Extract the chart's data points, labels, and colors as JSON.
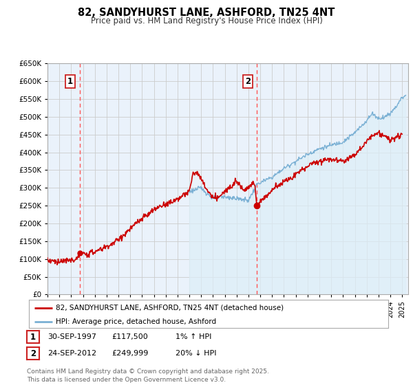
{
  "title": "82, SANDYHURST LANE, ASHFORD, TN25 4NT",
  "subtitle": "Price paid vs. HM Land Registry's House Price Index (HPI)",
  "ylim": [
    0,
    650000
  ],
  "yticks": [
    0,
    50000,
    100000,
    150000,
    200000,
    250000,
    300000,
    350000,
    400000,
    450000,
    500000,
    550000,
    600000,
    650000
  ],
  "xlim_start": 1995.0,
  "xlim_end": 2025.5,
  "hpi_color": "#7ab0d4",
  "hpi_fill_color": "#ddeef8",
  "price_color": "#cc0000",
  "vline_color": "#ff5555",
  "background_color": "#ffffff",
  "grid_color": "#cccccc",
  "marker1_x": 1997.73,
  "marker1_y": 117500,
  "marker2_x": 2012.73,
  "marker2_y": 249999,
  "legend_label1": "82, SANDYHURST LANE, ASHFORD, TN25 4NT (detached house)",
  "legend_label2": "HPI: Average price, detached house, Ashford",
  "footnote_label1_date": "30-SEP-1997",
  "footnote_label1_price": "£117,500",
  "footnote_label1_hpi": "1% ↑ HPI",
  "footnote_label2_date": "24-SEP-2012",
  "footnote_label2_price": "£249,999",
  "footnote_label2_hpi": "20% ↓ HPI",
  "copyright_text": "Contains HM Land Registry data © Crown copyright and database right 2025.\nThis data is licensed under the Open Government Licence v3.0."
}
